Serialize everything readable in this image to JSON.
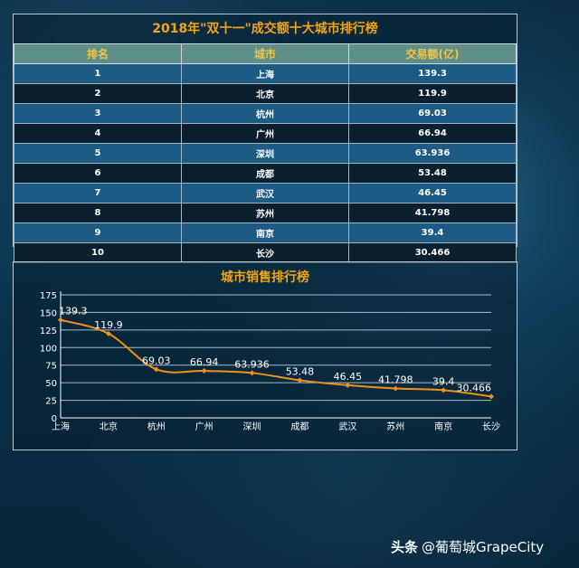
{
  "table": {
    "title": "2018年\"双十一\"成交额十大城市排行榜",
    "headers": [
      "排名",
      "城市",
      "交易额(亿)"
    ],
    "rows": [
      {
        "rank": "1",
        "city": "上海",
        "amount": "139.3"
      },
      {
        "rank": "2",
        "city": "北京",
        "amount": "119.9"
      },
      {
        "rank": "3",
        "city": "杭州",
        "amount": "69.03"
      },
      {
        "rank": "4",
        "city": "广州",
        "amount": "66.94"
      },
      {
        "rank": "5",
        "city": "深圳",
        "amount": "63.936"
      },
      {
        "rank": "6",
        "city": "成都",
        "amount": "53.48"
      },
      {
        "rank": "7",
        "city": "武汉",
        "amount": "46.45"
      },
      {
        "rank": "8",
        "city": "苏州",
        "amount": "41.798"
      },
      {
        "rank": "9",
        "city": "南京",
        "amount": "39.4"
      },
      {
        "rank": "10",
        "city": "长沙",
        "amount": "30.466"
      }
    ]
  },
  "chart_data": {
    "type": "line",
    "title": "城市销售排行榜",
    "categories": [
      "上海",
      "北京",
      "杭州",
      "广州",
      "深圳",
      "成都",
      "武汉",
      "苏州",
      "南京",
      "长沙"
    ],
    "values": [
      139.3,
      119.9,
      69.03,
      66.94,
      63.936,
      53.48,
      46.45,
      41.798,
      39.4,
      30.466
    ],
    "data_labels": [
      "139.3",
      "119.9",
      "69.03",
      "66.94",
      "63.936",
      "53.48",
      "46.45",
      "41.798",
      "39.4",
      "30.466"
    ],
    "yticks": [
      "0",
      "25",
      "50",
      "75",
      "100",
      "125",
      "150",
      "175"
    ],
    "ylim": [
      0,
      175
    ],
    "grid": true,
    "line_color": "#f0921a"
  },
  "watermark": {
    "brand": "头条",
    "handle": "@葡萄城GrapeCity"
  }
}
